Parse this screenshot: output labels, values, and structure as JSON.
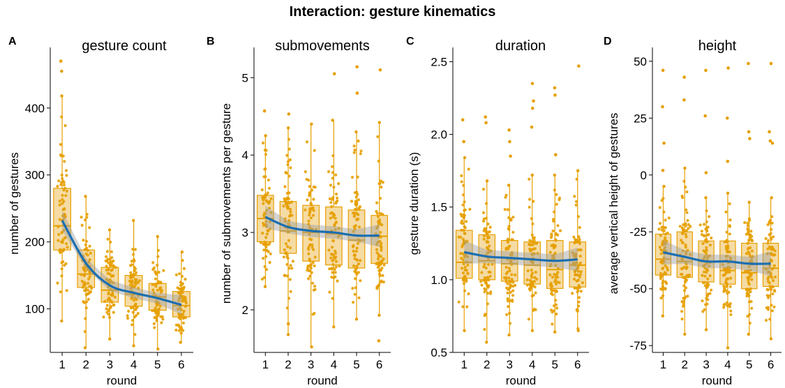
{
  "title": "Interaction: gesture kinematics",
  "colors": {
    "point": "#E69F00",
    "box_fill": "#F2CF86",
    "box_stroke": "#E69F00",
    "smooth": "#1B6EB0",
    "band": "#9E9E9E"
  },
  "chart_data": [
    {
      "type": "box",
      "letter": "A",
      "title": "gesture count",
      "xlabel": "round",
      "ylabel": "number of gestures",
      "categories": [
        "1",
        "2",
        "3",
        "4",
        "5",
        "6"
      ],
      "yticks": [
        100,
        200,
        300,
        400
      ],
      "ylim": [
        35,
        480
      ],
      "boxes": [
        {
          "q1": 188,
          "median": 224,
          "q3": 280,
          "whisker_low": 82,
          "whisker_high": 418,
          "outliers": [
            455,
            470
          ]
        },
        {
          "q1": 132,
          "median": 152,
          "q3": 188,
          "whisker_low": 42,
          "whisker_high": 268,
          "outliers": []
        },
        {
          "q1": 110,
          "median": 128,
          "q3": 162,
          "whisker_low": 55,
          "whisker_high": 218,
          "outliers": []
        },
        {
          "q1": 104,
          "median": 122,
          "q3": 150,
          "whisker_low": 45,
          "whisker_high": 232,
          "outliers": []
        },
        {
          "q1": 98,
          "median": 118,
          "q3": 138,
          "whisker_low": 40,
          "whisker_high": 208,
          "outliers": []
        },
        {
          "q1": 88,
          "median": 105,
          "q3": 126,
          "whisker_low": 50,
          "whisker_high": 185,
          "outliers": []
        }
      ],
      "smooth": [
        232,
        168,
        135,
        124,
        116,
        106
      ],
      "band_halfwidth": 8
    },
    {
      "type": "box",
      "letter": "B",
      "title": "submovements",
      "xlabel": "round",
      "ylabel": "number of submovements per gesture",
      "categories": [
        "1",
        "2",
        "3",
        "4",
        "5",
        "6"
      ],
      "yticks": [
        2,
        3,
        4,
        5
      ],
      "ylim": [
        1.45,
        5.3
      ],
      "boxes": [
        {
          "q1": 2.88,
          "median": 3.18,
          "q3": 3.48,
          "whisker_low": 2.3,
          "whisker_high": 4.25,
          "outliers": [
            4.57
          ]
        },
        {
          "q1": 2.73,
          "median": 3.02,
          "q3": 3.4,
          "whisker_low": 1.68,
          "whisker_high": 4.35,
          "outliers": [
            4.53,
            1.82
          ]
        },
        {
          "q1": 2.63,
          "median": 3.0,
          "q3": 3.35,
          "whisker_low": 1.52,
          "whisker_high": 4.4,
          "outliers": []
        },
        {
          "q1": 2.58,
          "median": 2.98,
          "q3": 3.33,
          "whisker_low": 1.78,
          "whisker_high": 4.45,
          "outliers": [
            5.05
          ]
        },
        {
          "q1": 2.54,
          "median": 2.9,
          "q3": 3.29,
          "whisker_low": 1.88,
          "whisker_high": 4.3,
          "outliers": [
            4.8,
            5.14
          ]
        },
        {
          "q1": 2.6,
          "median": 2.95,
          "q3": 3.22,
          "whisker_low": 1.93,
          "whisker_high": 4.42,
          "outliers": [
            5.1,
            1.6
          ]
        }
      ],
      "smooth": [
        3.2,
        3.07,
        3.02,
        3.0,
        2.96,
        2.96
      ],
      "band_halfwidth": 0.08
    },
    {
      "type": "box",
      "letter": "C",
      "title": "duration",
      "xlabel": "round",
      "ylabel": "gesture duration (s)",
      "categories": [
        "1",
        "2",
        "3",
        "4",
        "5",
        "6"
      ],
      "yticks": [
        0.5,
        1.0,
        1.5,
        2.0,
        2.5
      ],
      "ytick_labels": [
        "0.5",
        "1.0",
        "1.5",
        "2.0",
        "2.5"
      ],
      "ylim": [
        0.5,
        2.55
      ],
      "boxes": [
        {
          "q1": 1.01,
          "median": 1.12,
          "q3": 1.34,
          "whisker_low": 0.65,
          "whisker_high": 1.84,
          "outliers": [
            1.95,
            2.1
          ]
        },
        {
          "q1": 1.0,
          "median": 1.13,
          "q3": 1.31,
          "whisker_low": 0.57,
          "whisker_high": 1.68,
          "outliers": [
            2.08,
            2.12
          ]
        },
        {
          "q1": 0.99,
          "median": 1.11,
          "q3": 1.27,
          "whisker_low": 0.62,
          "whisker_high": 1.65,
          "outliers": [
            1.85,
            1.95,
            2.03
          ]
        },
        {
          "q1": 0.97,
          "median": 1.1,
          "q3": 1.26,
          "whisker_low": 0.65,
          "whisker_high": 1.72,
          "outliers": [
            2.05,
            2.18,
            2.23,
            2.35
          ]
        },
        {
          "q1": 0.94,
          "median": 1.07,
          "q3": 1.27,
          "whisker_low": 0.64,
          "whisker_high": 1.72,
          "outliers": [
            1.86,
            2.27,
            2.32
          ]
        },
        {
          "q1": 0.95,
          "median": 1.1,
          "q3": 1.26,
          "whisker_low": 0.65,
          "whisker_high": 1.75,
          "outliers": [
            2.47
          ]
        }
      ],
      "smooth": [
        1.19,
        1.16,
        1.15,
        1.14,
        1.13,
        1.14
      ],
      "band_halfwidth": 0.045
    },
    {
      "type": "box",
      "letter": "D",
      "title": "height",
      "xlabel": "round",
      "ylabel": "average vertical height of gestures",
      "categories": [
        "1",
        "2",
        "3",
        "4",
        "5",
        "6"
      ],
      "yticks": [
        -75,
        -50,
        -25,
        0,
        25,
        50
      ],
      "ylim": [
        -78,
        53
      ],
      "boxes": [
        {
          "q1": -44,
          "median": -37,
          "q3": -26,
          "whisker_low": -62,
          "whisker_high": -5,
          "outliers": [
            2,
            14,
            30,
            46
          ]
        },
        {
          "q1": -45,
          "median": -38,
          "q3": -25,
          "whisker_low": -70,
          "whisker_high": 3,
          "outliers": [
            33,
            43
          ]
        },
        {
          "q1": -47,
          "median": -38,
          "q3": -29,
          "whisker_low": -68,
          "whisker_high": -10,
          "outliers": [
            1,
            26,
            46
          ]
        },
        {
          "q1": -48,
          "median": -42,
          "q3": -29,
          "whisker_low": -76,
          "whisker_high": -8,
          "outliers": [
            6,
            25,
            47
          ]
        },
        {
          "q1": -50,
          "median": -43,
          "q3": -30,
          "whisker_low": -70,
          "whisker_high": -12,
          "outliers": [
            16,
            19,
            49
          ]
        },
        {
          "q1": -49,
          "median": -41,
          "q3": -30,
          "whisker_low": -72,
          "whisker_high": -10,
          "outliers": [
            14,
            15,
            19,
            49
          ]
        }
      ],
      "smooth": [
        -34,
        -36,
        -38,
        -38,
        -39,
        -39
      ],
      "band_halfwidth": 3
    }
  ]
}
